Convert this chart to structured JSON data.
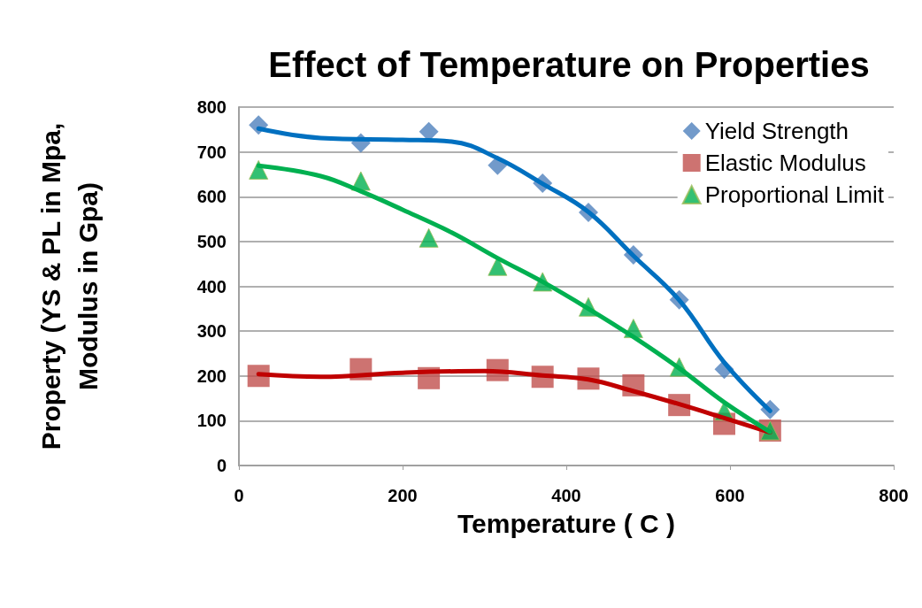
{
  "chart_data": {
    "type": "scatter",
    "title": "Effect of Temperature on Properties",
    "xlabel": "Temperature ( C )",
    "ylabel": "Property (YS & PL in Mpa,\nModulus in Gpa)",
    "x": [
      24,
      149,
      232,
      316,
      371,
      427,
      482,
      538,
      593,
      649
    ],
    "series": [
      {
        "name": "Yield Strength",
        "marker": "diamond",
        "color": "#4f81bd",
        "values": [
          760,
          720,
          745,
          670,
          630,
          565,
          470,
          370,
          215,
          125
        ]
      },
      {
        "name": "Elastic Modulus",
        "marker": "square",
        "color": "#c0504d",
        "values": [
          200,
          215,
          195,
          213,
          198,
          194,
          179,
          135,
          93,
          78
        ]
      },
      {
        "name": "Proportional Limit",
        "marker": "triangle",
        "color": "#00b050",
        "values": [
          660,
          635,
          508,
          445,
          410,
          354,
          306,
          220,
          122,
          78
        ]
      },
      {
        "type": "line",
        "marker": "none",
        "color": "#0070c0",
        "x": [
          24,
          100,
          200,
          260,
          316,
          371,
          427,
          482,
          538,
          593,
          649
        ],
        "values": [
          752,
          731,
          727,
          723,
          686,
          629,
          566,
          468,
          369,
          230,
          122
        ]
      },
      {
        "type": "line",
        "marker": "none",
        "color": "#c00000",
        "x": [
          24,
          100,
          200,
          300,
          371,
          427,
          482,
          538,
          593,
          649
        ],
        "values": [
          204,
          198,
          207,
          211,
          201,
          192,
          166,
          137,
          106,
          74
        ]
      },
      {
        "type": "line",
        "marker": "none",
        "color": "#00b050",
        "x": [
          24,
          100,
          149,
          200,
          260,
          316,
          371,
          427,
          482,
          538,
          593,
          649
        ],
        "values": [
          669,
          646,
          612,
          571,
          520,
          463,
          410,
          350,
          287,
          217,
          141,
          75
        ]
      }
    ],
    "xlim": [
      0,
      800
    ],
    "xticks": [
      0,
      200,
      400,
      600,
      800
    ],
    "ylim": [
      0,
      800
    ],
    "yticks": [
      0,
      100,
      200,
      300,
      400,
      500,
      600,
      700,
      800
    ],
    "grid": "y",
    "legend": "top right"
  }
}
